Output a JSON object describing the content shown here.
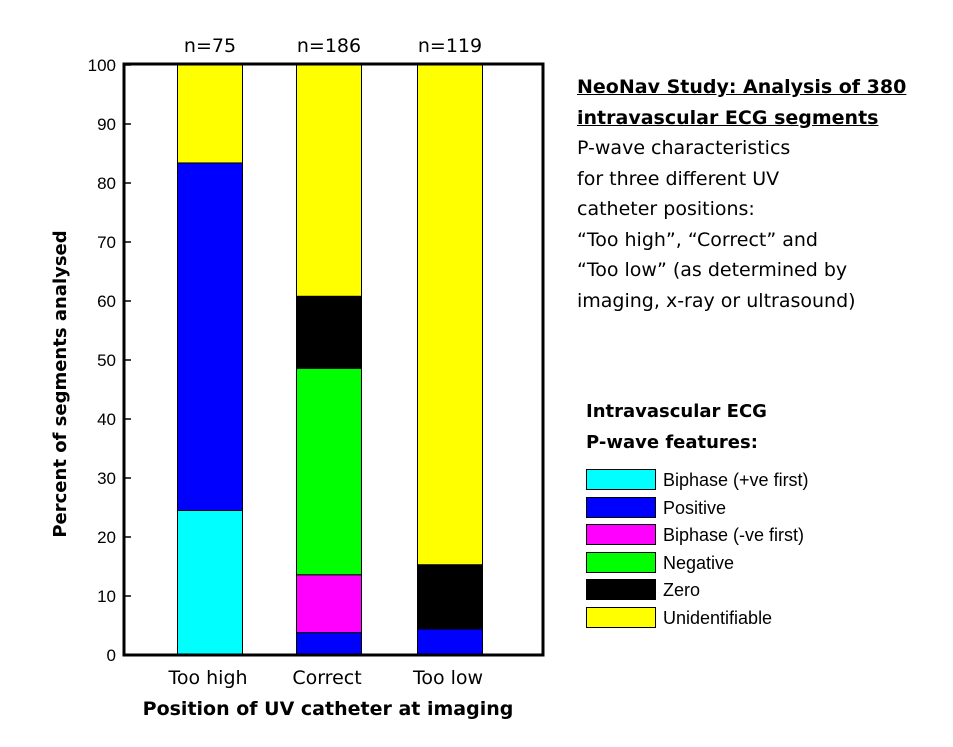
{
  "chart_data": {
    "type": "bar",
    "stacked": true,
    "categories": [
      "Too high",
      "Correct",
      "Too low"
    ],
    "category_counts": [
      "n=75",
      "n=186",
      "n=119"
    ],
    "series": [
      {
        "name": "Biphase (+ve first)",
        "color": "#00ffff",
        "values": [
          24.5,
          0,
          0
        ]
      },
      {
        "name": "Positive",
        "color": "#0000ff",
        "values": [
          58.9,
          3.8,
          4.4
        ]
      },
      {
        "name": "Biphase (-ve first)",
        "color": "#ff00ff",
        "values": [
          0,
          9.8,
          0
        ]
      },
      {
        "name": "Negative",
        "color": "#00ff00",
        "values": [
          0,
          35.0,
          0
        ]
      },
      {
        "name": "Zero",
        "color": "#000000",
        "values": [
          0,
          12.2,
          10.9
        ]
      },
      {
        "name": "Unidentifiable",
        "color": "#ffff00",
        "values": [
          16.6,
          39.2,
          84.7
        ]
      }
    ],
    "ylim": [
      0,
      100
    ],
    "yticks": [
      "0",
      "10",
      "20",
      "30",
      "40",
      "50",
      "60",
      "70",
      "80",
      "90",
      "100"
    ],
    "ylabel": "Percent of segments analysed",
    "xlabel": "Position of UV catheter at imaging",
    "grid": false,
    "legend_title": [
      "Intravascular ECG",
      "P-wave features:"
    ]
  },
  "annotation": {
    "title_lines": [
      "NeoNav Study: Analysis of 380",
      "intravascular ECG segments"
    ],
    "description_lines": [
      "P-wave characteristics",
      "for three different UV",
      "catheter positions:",
      "“Too high”, “Correct” and",
      "“Too low” (as determined by",
      "imaging, x-ray or ultrasound)"
    ]
  }
}
